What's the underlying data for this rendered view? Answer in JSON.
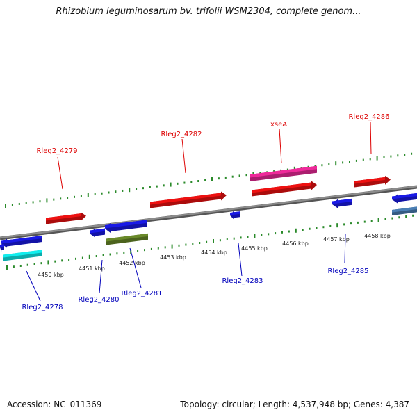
{
  "title": "Rhizobium leguminosarum bv. trifolii WSM2304, complete genom...",
  "footer": {
    "accession": "Accession: NC_011369",
    "summary": "Topology: circular; Length: 4,537,948 bp; Genes: 4,387"
  },
  "colors": {
    "backbone": "#8c8c8c",
    "tick": "#2a8a2a",
    "forward_label": "#dd0000",
    "reverse_label": "#0000bb",
    "red": "#ee1111",
    "magenta": "#ee2a9a",
    "blue": "#1a1ae6",
    "cyan": "#11eeee",
    "olive": "#6a8a2a",
    "steel": "#4a7fb5"
  },
  "scale_labels": [
    "4450 kbp",
    "4451 kbp",
    "4452 kbp",
    "4453 kbp",
    "4454 kbp",
    "4455 kbp",
    "4456 kbp",
    "4457 kbp",
    "4458 kbp"
  ],
  "forward_labels": [
    "Rleg2_4279",
    "Rleg2_4282",
    "xseA",
    "Rleg2_4286"
  ],
  "reverse_labels": [
    "Rleg2_4278",
    "Rleg2_4280",
    "Rleg2_4281",
    "Rleg2_4283",
    "Rleg2_4285"
  ]
}
